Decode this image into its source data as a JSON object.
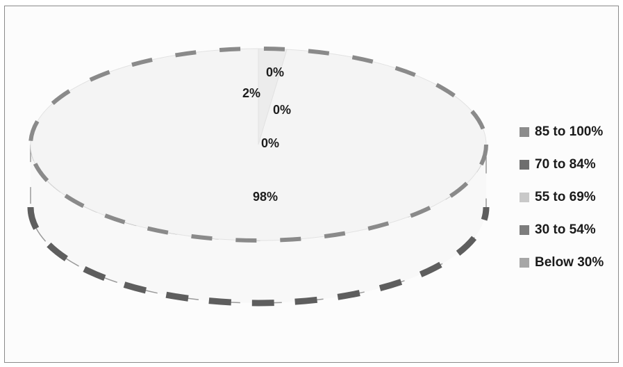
{
  "chart_data": {
    "type": "pie",
    "categories": [
      "85 to 100%",
      "70 to 84%",
      "55 to 69%",
      "30 to 54%",
      "Below 30%"
    ],
    "values": [
      0,
      2,
      0,
      0,
      98
    ],
    "data_labels": [
      "0%",
      "2%",
      "0%",
      "0%",
      "98%"
    ],
    "colors": [
      "#8c8c8c",
      "#6e6e6e",
      "#c9c9c9",
      "#7d7d7d",
      "#a6a6a6"
    ],
    "legend": "right",
    "style": "3d"
  }
}
